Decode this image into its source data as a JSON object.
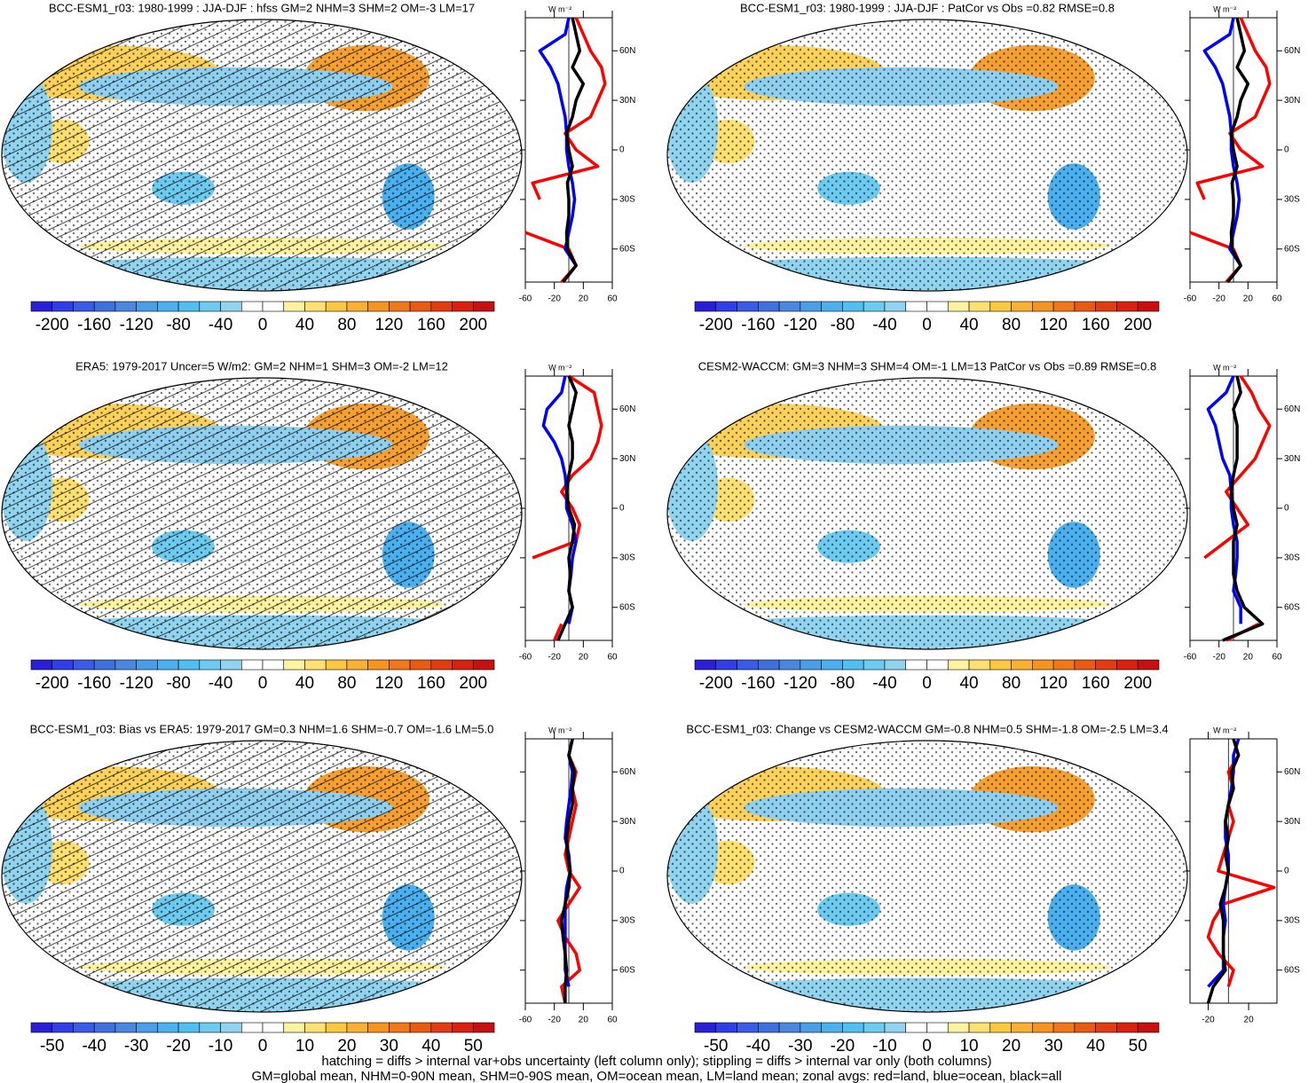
{
  "chart_data": [
    {
      "type": "map",
      "title": "BCC-ESM1_r03: 1980-1999 : JJA-DJF : hfss GM=2 NHM=3 SHM=2 OM=-3 LM=17",
      "colorbar": {
        "lim": [
          -220,
          220
        ],
        "ticks": [
          -200,
          -160,
          -120,
          -80,
          -40,
          0,
          40,
          80,
          120,
          160,
          200
        ],
        "colors": [
          "#2a1fd9",
          "#2f3ee8",
          "#3a5ae8",
          "#3f70e0",
          "#4a88e0",
          "#4a9ee8",
          "#4ab0f0",
          "#50c0f0",
          "#6ccbf0",
          "#90d4f0",
          "#ffffff",
          "#ffffff",
          "#fff3a0",
          "#ffe070",
          "#fcc840",
          "#fab030",
          "#f59420",
          "#f07818",
          "#ea5a10",
          "#e23c10",
          "#dc2010",
          "#c81010"
        ]
      },
      "zonal": {
        "type": "line",
        "units": "W m⁻²",
        "lat": [
          80,
          70,
          60,
          50,
          40,
          30,
          20,
          10,
          0,
          -10,
          -20,
          -30,
          -40,
          -50,
          -60,
          -70,
          -80
        ],
        "xlim": [
          -60,
          60
        ],
        "xticks": [
          -60,
          -20,
          20,
          60
        ],
        "ylim": [
          -80,
          80
        ],
        "yticks": [
          {
            "value": 60,
            "label": "60N"
          },
          {
            "value": 30,
            "label": "30N"
          },
          0,
          {
            "value": -30,
            "label": "30S"
          },
          {
            "value": -60,
            "label": "60S"
          }
        ],
        "series": [
          {
            "color": "#ff0000",
            "values": [
              10,
              20,
              30,
              45,
              50,
              40,
              30,
              -5,
              10,
              40,
              -50,
              -40,
              null,
              -60,
              0,
              10,
              -10
            ]
          },
          {
            "color": "#0000ff",
            "values": [
              0,
              -5,
              -40,
              -25,
              -15,
              -10,
              -5,
              -3,
              -3,
              0,
              5,
              8,
              5,
              0,
              -5,
              10,
              null
            ]
          },
          {
            "color": "#000000",
            "values": [
              5,
              10,
              15,
              5,
              20,
              10,
              5,
              -3,
              0,
              5,
              -2,
              0,
              0,
              -3,
              -2,
              10,
              -8
            ]
          }
        ]
      }
    },
    {
      "type": "map",
      "title": "BCC-ESM1_r03: 1980-1999 : JJA-DJF : PatCor vs Obs =0.82 RMSE=0.8",
      "colorbar": {
        "lim": [
          -220,
          220
        ],
        "ticks": [
          -200,
          -160,
          -120,
          -80,
          -40,
          0,
          40,
          80,
          120,
          160,
          200
        ],
        "colors": [
          "#2a1fd9",
          "#2f3ee8",
          "#3a5ae8",
          "#3f70e0",
          "#4a88e0",
          "#4a9ee8",
          "#4ab0f0",
          "#50c0f0",
          "#6ccbf0",
          "#90d4f0",
          "#ffffff",
          "#ffffff",
          "#fff3a0",
          "#ffe070",
          "#fcc840",
          "#fab030",
          "#f59420",
          "#f07818",
          "#ea5a10",
          "#e23c10",
          "#dc2010",
          "#c81010"
        ]
      },
      "zonal": {
        "type": "line",
        "units": "W m⁻²",
        "lat": [
          80,
          70,
          60,
          50,
          40,
          30,
          20,
          10,
          0,
          -10,
          -20,
          -30,
          -40,
          -50,
          -60,
          -70,
          -80
        ],
        "xlim": [
          -60,
          60
        ],
        "xticks": [
          -60,
          -20,
          20,
          60
        ],
        "ylim": [
          -80,
          80
        ],
        "yticks": [
          {
            "value": 60,
            "label": "60N"
          },
          {
            "value": 30,
            "label": "30N"
          },
          0,
          {
            "value": -30,
            "label": "30S"
          },
          {
            "value": -60,
            "label": "60S"
          }
        ],
        "series": [
          {
            "color": "#ff0000",
            "values": [
              10,
              20,
              30,
              45,
              50,
              40,
              30,
              -5,
              10,
              40,
              -50,
              -40,
              null,
              -60,
              0,
              10,
              -10
            ]
          },
          {
            "color": "#0000ff",
            "values": [
              0,
              -5,
              -40,
              -25,
              -15,
              -10,
              -5,
              -3,
              -3,
              0,
              5,
              8,
              5,
              0,
              -5,
              10,
              null
            ]
          },
          {
            "color": "#000000",
            "values": [
              5,
              10,
              15,
              5,
              20,
              10,
              5,
              -3,
              0,
              5,
              -2,
              0,
              0,
              -3,
              -2,
              10,
              -8
            ]
          }
        ]
      }
    },
    {
      "type": "map",
      "title": "ERA5: 1979-2017 Uncer=5 W/m2: GM=2 NHM=1 SHM=3 OM=-2 LM=12",
      "colorbar": {
        "lim": [
          -220,
          220
        ],
        "ticks": [
          -200,
          -160,
          -120,
          -80,
          -40,
          0,
          40,
          80,
          120,
          160,
          200
        ],
        "colors": [
          "#2a1fd9",
          "#2f3ee8",
          "#3a5ae8",
          "#3f70e0",
          "#4a88e0",
          "#4a9ee8",
          "#4ab0f0",
          "#50c0f0",
          "#6ccbf0",
          "#90d4f0",
          "#ffffff",
          "#ffffff",
          "#fff3a0",
          "#ffe070",
          "#fcc840",
          "#fab030",
          "#f59420",
          "#f07818",
          "#ea5a10",
          "#e23c10",
          "#dc2010",
          "#c81010"
        ]
      },
      "zonal": {
        "type": "line",
        "units": "W m⁻²",
        "lat": [
          80,
          70,
          60,
          50,
          40,
          30,
          20,
          10,
          0,
          -10,
          -20,
          -30,
          -40,
          -50,
          -60,
          -70,
          -80
        ],
        "xlim": [
          -60,
          60
        ],
        "xticks": [
          -60,
          -20,
          20,
          60
        ],
        "ylim": [
          -80,
          80
        ],
        "yticks": [
          {
            "value": 60,
            "label": "60N"
          },
          {
            "value": 30,
            "label": "30N"
          },
          0,
          {
            "value": -30,
            "label": "30S"
          },
          {
            "value": -60,
            "label": "60S"
          }
        ],
        "series": [
          {
            "color": "#ff0000",
            "values": [
              0,
              35,
              40,
              45,
              40,
              30,
              5,
              -10,
              5,
              15,
              10,
              -50,
              null,
              -50,
              null,
              -10,
              -20
            ]
          },
          {
            "color": "#0000ff",
            "values": [
              -5,
              -10,
              -30,
              -35,
              -20,
              -10,
              -5,
              -3,
              -3,
              5,
              10,
              5,
              3,
              0,
              5,
              0,
              null
            ]
          },
          {
            "color": "#000000",
            "values": [
              0,
              10,
              5,
              0,
              5,
              5,
              0,
              -3,
              0,
              8,
              5,
              0,
              2,
              0,
              5,
              -5,
              -15
            ]
          }
        ]
      }
    },
    {
      "type": "map",
      "title": "CESM2-WACCM: GM=3 NHM=3 SHM=4 OM=-1 LM=13 PatCor vs Obs =0.89 RMSE=0.8",
      "colorbar": {
        "lim": [
          -220,
          220
        ],
        "ticks": [
          -200,
          -160,
          -120,
          -80,
          -40,
          0,
          40,
          80,
          120,
          160,
          200
        ],
        "colors": [
          "#2a1fd9",
          "#2f3ee8",
          "#3a5ae8",
          "#3f70e0",
          "#4a88e0",
          "#4a9ee8",
          "#4ab0f0",
          "#50c0f0",
          "#6ccbf0",
          "#90d4f0",
          "#ffffff",
          "#ffffff",
          "#fff3a0",
          "#ffe070",
          "#fcc840",
          "#fab030",
          "#f59420",
          "#f07818",
          "#ea5a10",
          "#e23c10",
          "#dc2010",
          "#c81010"
        ]
      },
      "zonal": {
        "type": "line",
        "units": "W m⁻²",
        "lat": [
          80,
          70,
          60,
          50,
          40,
          30,
          20,
          10,
          0,
          -10,
          -20,
          -30,
          -40,
          -50,
          -60,
          -70,
          -80
        ],
        "xlim": [
          -60,
          60
        ],
        "xticks": [
          -60,
          -20,
          20,
          60
        ],
        "ylim": [
          -80,
          80
        ],
        "yticks": [
          {
            "value": 60,
            "label": "60N"
          },
          {
            "value": 30,
            "label": "30N"
          },
          0,
          {
            "value": -30,
            "label": "30S"
          },
          {
            "value": -60,
            "label": "60S"
          }
        ],
        "series": [
          {
            "color": "#ff0000",
            "values": [
              10,
              25,
              35,
              50,
              40,
              30,
              10,
              -10,
              5,
              20,
              -10,
              -40,
              null,
              -50,
              null,
              35,
              -10
            ]
          },
          {
            "color": "#0000ff",
            "values": [
              0,
              -10,
              -35,
              -25,
              -20,
              -15,
              -5,
              -3,
              -3,
              0,
              5,
              5,
              3,
              0,
              10,
              10,
              null
            ]
          },
          {
            "color": "#000000",
            "values": [
              5,
              10,
              0,
              5,
              5,
              5,
              0,
              -3,
              0,
              5,
              0,
              0,
              0,
              5,
              15,
              40,
              -15
            ]
          }
        ]
      }
    },
    {
      "type": "map",
      "title": "BCC-ESM1_r03: Bias vs ERA5: 1979-2017 GM=0.3 NHM=1.6 SHM=-0.7 OM=-1.6 LM=5.0",
      "colorbar": {
        "lim": [
          -55,
          55
        ],
        "ticks": [
          -50,
          -40,
          -30,
          -20,
          -10,
          0,
          10,
          20,
          30,
          40,
          50
        ],
        "colors": [
          "#2a1fd9",
          "#2f3ee8",
          "#3a5ae8",
          "#3f70e0",
          "#4a88e0",
          "#4a9ee8",
          "#4ab0f0",
          "#50c0f0",
          "#6ccbf0",
          "#90d4f0",
          "#ffffff",
          "#ffffff",
          "#fff3a0",
          "#ffe070",
          "#fcc840",
          "#fab030",
          "#f59420",
          "#f07818",
          "#ea5a10",
          "#e23c10",
          "#dc2010",
          "#c81010"
        ]
      },
      "zonal": {
        "type": "line",
        "units": "W m⁻²",
        "lat": [
          80,
          70,
          60,
          50,
          40,
          30,
          20,
          10,
          0,
          -10,
          -20,
          -30,
          -40,
          -50,
          -60,
          -70,
          -80
        ],
        "xlim": [
          -60,
          60
        ],
        "xticks": [
          -60,
          -20,
          20,
          60
        ],
        "ylim": [
          -80,
          80
        ],
        "yticks": [
          {
            "value": 60,
            "label": "60N"
          },
          {
            "value": 30,
            "label": "30N"
          },
          0,
          {
            "value": -30,
            "label": "30S"
          },
          {
            "value": -60,
            "label": "60S"
          }
        ],
        "series": [
          {
            "color": "#ff0000",
            "values": [
              5,
              0,
              10,
              5,
              10,
              5,
              0,
              -5,
              0,
              15,
              0,
              -15,
              -5,
              10,
              15,
              -10,
              -5
            ]
          },
          {
            "color": "#0000ff",
            "values": [
              5,
              0,
              5,
              3,
              0,
              -3,
              -5,
              0,
              2,
              -3,
              -5,
              -5,
              -5,
              -5,
              -5,
              0,
              null
            ]
          },
          {
            "color": "#000000",
            "values": [
              5,
              0,
              8,
              5,
              5,
              0,
              -3,
              -2,
              2,
              0,
              -5,
              -10,
              -8,
              -5,
              -3,
              -5,
              -5
            ]
          }
        ]
      }
    },
    {
      "type": "map",
      "title": "BCC-ESM1_r03: Change vs CESM2-WACCM GM=-0.8 NHM=0.5 SHM=-1.8 OM=-2.5 LM=3.4",
      "colorbar": {
        "lim": [
          -55,
          55
        ],
        "ticks": [
          -50,
          -40,
          -30,
          -20,
          -10,
          0,
          10,
          20,
          30,
          40,
          50
        ],
        "colors": [
          "#2a1fd9",
          "#2f3ee8",
          "#3a5ae8",
          "#3f70e0",
          "#4a88e0",
          "#4a9ee8",
          "#4ab0f0",
          "#50c0f0",
          "#6ccbf0",
          "#90d4f0",
          "#ffffff",
          "#ffffff",
          "#fff3a0",
          "#ffe070",
          "#fcc840",
          "#fab030",
          "#f59420",
          "#f07818",
          "#ea5a10",
          "#e23c10",
          "#dc2010",
          "#c81010"
        ]
      },
      "zonal": {
        "type": "line",
        "units": "W m⁻²",
        "lat": [
          80,
          70,
          60,
          50,
          40,
          30,
          20,
          10,
          0,
          -10,
          -20,
          -30,
          -40,
          -50,
          -60,
          -70,
          -80
        ],
        "xlim": [
          -38,
          48
        ],
        "xticks": [
          -20,
          20
        ],
        "ylim": [
          -80,
          80
        ],
        "yticks": [
          {
            "value": 60,
            "label": "60N"
          },
          {
            "value": 30,
            "label": "30N"
          },
          0,
          {
            "value": -30,
            "label": "30S"
          },
          {
            "value": -60,
            "label": "60S"
          }
        ],
        "series": [
          {
            "color": "#ff0000",
            "values": [
              5,
              10,
              0,
              5,
              0,
              5,
              0,
              -5,
              -10,
              45,
              -5,
              -15,
              -20,
              -10,
              5,
              0,
              null
            ]
          },
          {
            "color": "#0000ff",
            "values": [
              10,
              5,
              5,
              3,
              0,
              -3,
              -3,
              0,
              0,
              -3,
              -5,
              -3,
              -5,
              -5,
              -5,
              -20,
              null
            ]
          },
          {
            "color": "#000000",
            "values": [
              5,
              10,
              3,
              5,
              0,
              -3,
              0,
              -3,
              0,
              -3,
              -8,
              -5,
              -5,
              -5,
              -3,
              -15,
              -20
            ]
          }
        ]
      }
    }
  ],
  "footnotes": [
    "hatching = diffs > internal var+obs uncertainty (left column only); stippling = diffs > internal var only (both columns)",
    "GM=global mean, NHM=0-90N mean, SHM=0-90S mean, OM=ocean mean, LM=land mean; zonal avgs: red=land, blue=ocean, black=all"
  ]
}
